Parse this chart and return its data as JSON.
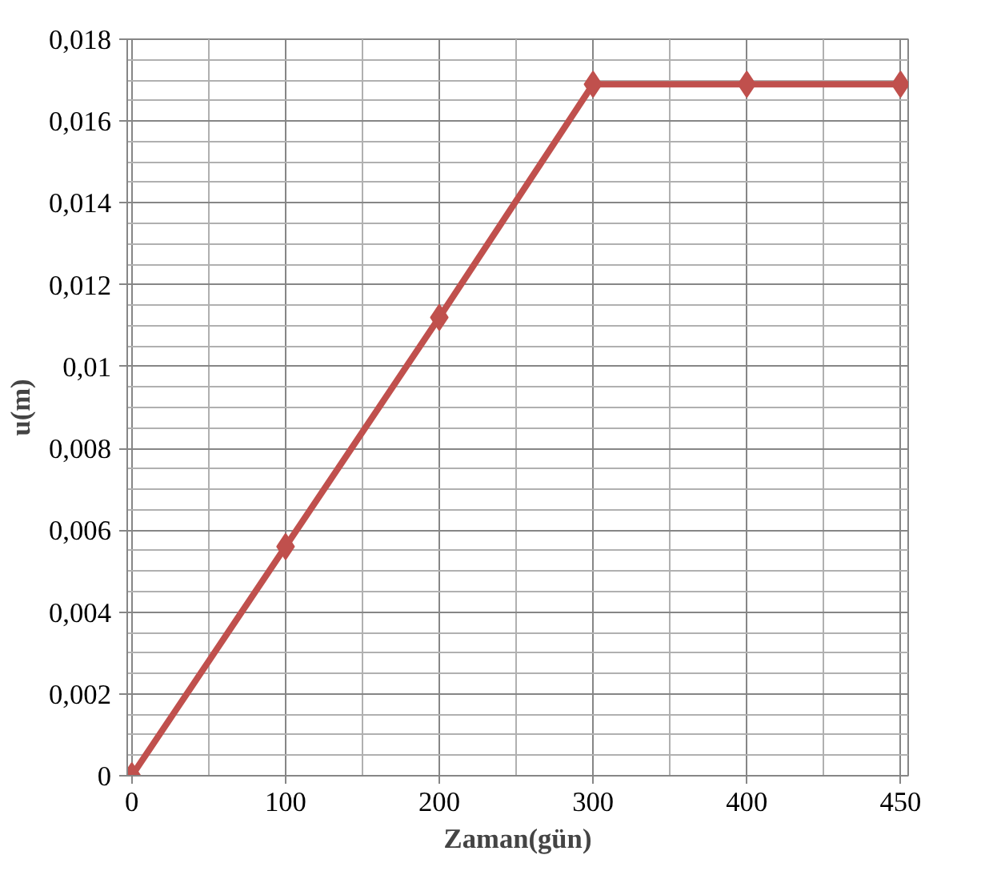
{
  "chart_data": {
    "type": "line",
    "xlabel": "Zaman(gün)",
    "ylabel": "u(m)",
    "categories": [
      "0",
      "100",
      "200",
      "300",
      "400",
      "450"
    ],
    "series": [
      {
        "color": "#c0504d",
        "values": [
          0,
          0.0056,
          0.0112,
          0.0169,
          0.0169,
          0.0169
        ]
      }
    ],
    "ylim": [
      0,
      0.018
    ],
    "yticks": [
      0,
      {
        "value": 0.002,
        "label": "0,002"
      },
      {
        "value": 0.004,
        "label": "0,004"
      },
      {
        "value": 0.006,
        "label": "0,006"
      },
      {
        "value": 0.008,
        "label": "0,008"
      },
      {
        "value": 0.01,
        "label": "0,01"
      },
      {
        "value": 0.012,
        "label": "0,012"
      },
      {
        "value": 0.014,
        "label": "0,014"
      },
      {
        "value": 0.016,
        "label": "0,016"
      },
      {
        "value": 0.018,
        "label": "0,018"
      }
    ],
    "grid": true,
    "marker": "diamond",
    "line_style": "solid"
  }
}
